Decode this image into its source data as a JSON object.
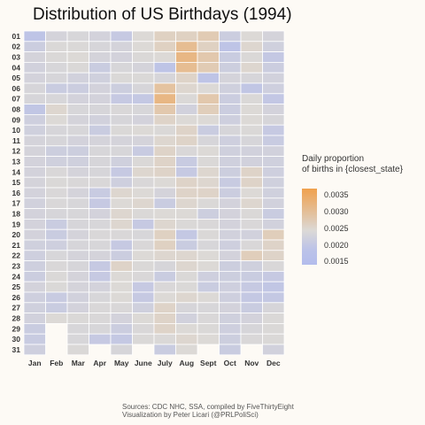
{
  "title": "Distribution of US Birthdays (1994)",
  "chart_data": {
    "type": "heatmap",
    "title": "Distribution of US Birthdays (1994)",
    "x_categories": [
      "Jan",
      "Feb",
      "Mar",
      "Apr",
      "May",
      "June",
      "July",
      "Aug",
      "Sept",
      "Oct",
      "Nov",
      "Dec"
    ],
    "y_categories": [
      "01",
      "02",
      "03",
      "04",
      "05",
      "06",
      "07",
      "08",
      "09",
      "10",
      "11",
      "12",
      "13",
      "14",
      "15",
      "16",
      "17",
      "18",
      "19",
      "20",
      "21",
      "22",
      "23",
      "24",
      "25",
      "26",
      "27",
      "28",
      "29",
      "30",
      "31"
    ],
    "days_in_month": [
      31,
      28,
      31,
      30,
      31,
      30,
      31,
      31,
      30,
      31,
      30,
      31
    ],
    "values": [
      [
        0.00175,
        0.00245,
        0.00255,
        0.0024,
        0.002,
        0.0027,
        0.00285,
        0.00285,
        0.00295,
        0.00215,
        0.0027,
        0.00245
      ],
      [
        0.00215,
        0.00265,
        0.00265,
        0.0025,
        0.00245,
        0.0027,
        0.00285,
        0.0032,
        0.00285,
        0.00175,
        0.00275,
        0.0023
      ],
      [
        0.00245,
        0.00265,
        0.0027,
        0.00245,
        0.0024,
        0.00265,
        0.0027,
        0.0033,
        0.003,
        0.0021,
        0.00265,
        0.00195
      ],
      [
        0.00235,
        0.00255,
        0.00265,
        0.0021,
        0.00255,
        0.00245,
        0.00175,
        0.0032,
        0.00295,
        0.0022,
        0.00275,
        0.00215
      ],
      [
        0.0024,
        0.0025,
        0.00235,
        0.0023,
        0.00265,
        0.00265,
        0.0025,
        0.0028,
        0.00175,
        0.00245,
        0.0025,
        0.00235
      ],
      [
        0.0025,
        0.0021,
        0.00215,
        0.0024,
        0.0022,
        0.0025,
        0.0031,
        0.00275,
        0.0027,
        0.0023,
        0.00185,
        0.00225
      ],
      [
        0.0025,
        0.00255,
        0.0024,
        0.0024,
        0.002,
        0.00195,
        0.0033,
        0.00265,
        0.003,
        0.00215,
        0.00265,
        0.0019
      ],
      [
        0.00185,
        0.00275,
        0.00255,
        0.0025,
        0.0026,
        0.00255,
        0.003,
        0.00235,
        0.0029,
        0.00215,
        0.0027,
        0.0024
      ],
      [
        0.00225,
        0.0027,
        0.00245,
        0.00235,
        0.0025,
        0.0024,
        0.0028,
        0.0027,
        0.0027,
        0.00225,
        0.0027,
        0.0025
      ],
      [
        0.0023,
        0.0025,
        0.00255,
        0.0021,
        0.00265,
        0.0027,
        0.00265,
        0.0028,
        0.0021,
        0.0025,
        0.00265,
        0.002
      ],
      [
        0.00245,
        0.0025,
        0.0024,
        0.00245,
        0.00245,
        0.00245,
        0.00275,
        0.0028,
        0.0025,
        0.00225,
        0.0025,
        0.00205
      ],
      [
        0.00245,
        0.0022,
        0.0022,
        0.00255,
        0.00255,
        0.00205,
        0.0028,
        0.0026,
        0.0027,
        0.0023,
        0.00235,
        0.00235
      ],
      [
        0.0024,
        0.0023,
        0.0023,
        0.0025,
        0.0023,
        0.00265,
        0.0028,
        0.00205,
        0.00265,
        0.0023,
        0.00235,
        0.0023
      ],
      [
        0.0024,
        0.0026,
        0.00245,
        0.0025,
        0.002,
        0.00275,
        0.0028,
        0.002,
        0.00275,
        0.0022,
        0.0028,
        0.00225
      ],
      [
        0.00245,
        0.00265,
        0.0026,
        0.0026,
        0.00225,
        0.0026,
        0.0027,
        0.0028,
        0.00275,
        0.00205,
        0.0028,
        0.0023
      ],
      [
        0.0024,
        0.0026,
        0.00245,
        0.00205,
        0.00275,
        0.0027,
        0.00245,
        0.0028,
        0.0028,
        0.00215,
        0.0027,
        0.0023
      ],
      [
        0.00235,
        0.0026,
        0.00255,
        0.002,
        0.0027,
        0.00275,
        0.0021,
        0.00275,
        0.00265,
        0.0024,
        0.00275,
        0.00235
      ],
      [
        0.0024,
        0.0025,
        0.00255,
        0.0024,
        0.00275,
        0.00265,
        0.0027,
        0.0027,
        0.0022,
        0.0024,
        0.00265,
        0.0021
      ],
      [
        0.0024,
        0.0021,
        0.0025,
        0.00255,
        0.00275,
        0.002,
        0.00275,
        0.00265,
        0.0026,
        0.0024,
        0.0026,
        0.00235
      ],
      [
        0.0024,
        0.0021,
        0.00245,
        0.0026,
        0.0026,
        0.00255,
        0.00285,
        0.00195,
        0.00265,
        0.00235,
        0.00235,
        0.0029
      ],
      [
        0.0023,
        0.00225,
        0.0025,
        0.00255,
        0.002,
        0.0026,
        0.00285,
        0.0021,
        0.00255,
        0.00225,
        0.0026,
        0.0028
      ],
      [
        0.00225,
        0.00255,
        0.00245,
        0.00245,
        0.00215,
        0.0027,
        0.00275,
        0.00275,
        0.0027,
        0.0024,
        0.0029,
        0.0028
      ],
      [
        0.00225,
        0.0026,
        0.0025,
        0.002,
        0.0028,
        0.00265,
        0.0025,
        0.00275,
        0.0027,
        0.0022,
        0.0023,
        0.0026
      ],
      [
        0.00215,
        0.00265,
        0.00245,
        0.002,
        0.0027,
        0.0026,
        0.0021,
        0.00265,
        0.00225,
        0.0022,
        0.0021,
        0.002
      ],
      [
        0.0024,
        0.00265,
        0.00245,
        0.0024,
        0.0027,
        0.002,
        0.0026,
        0.00265,
        0.0021,
        0.00225,
        0.002,
        0.00185
      ],
      [
        0.00225,
        0.00205,
        0.00235,
        0.00255,
        0.0027,
        0.002,
        0.0027,
        0.00275,
        0.0027,
        0.00225,
        0.00195,
        0.00195
      ],
      [
        0.0023,
        0.0021,
        0.0024,
        0.0026,
        0.0026,
        0.0023,
        0.0028,
        0.0025,
        0.00255,
        0.0024,
        0.0021,
        0.0025
      ],
      [
        0.00235,
        0.0027,
        0.00265,
        0.0026,
        0.0024,
        0.0027,
        0.0028,
        0.00235,
        0.0026,
        0.0023,
        0.0024,
        0.00265
      ],
      [
        0.0021,
        null,
        0.00255,
        0.00255,
        0.00215,
        0.0026,
        0.0028,
        0.0027,
        0.00265,
        0.00225,
        0.0025,
        0.00265
      ],
      [
        0.00205,
        null,
        0.00255,
        0.002,
        0.00195,
        0.00265,
        0.00265,
        0.00275,
        0.0027,
        0.0022,
        0.0026,
        0.00265
      ],
      [
        0.00225,
        null,
        0.00265,
        null,
        0.0025,
        null,
        0.0021,
        0.0027,
        null,
        0.0021,
        null,
        0.00235
      ]
    ],
    "color_scale": {
      "low_color": "#b3bcec",
      "mid_color": "#dcd9d6",
      "high_color": "#f0a14e",
      "min": 0.0014,
      "mid": 0.0027,
      "max": 0.0037
    },
    "legend": {
      "title_line1": "Daily proportion",
      "title_line2": "of births in {closest_state}",
      "ticks": [
        "0.0035",
        "0.0030",
        "0.0025",
        "0.0020",
        "0.0015"
      ],
      "tick_values": [
        0.0035,
        0.003,
        0.0025,
        0.002,
        0.0015
      ],
      "placement": "right"
    },
    "xlabel": "",
    "ylabel": ""
  },
  "sources": {
    "line1": "Sources: CDC NHC, SSA, compiled by FiveThirtyEight",
    "line2": "Visualization by Peter Licari (@PRLPoliSci)"
  }
}
